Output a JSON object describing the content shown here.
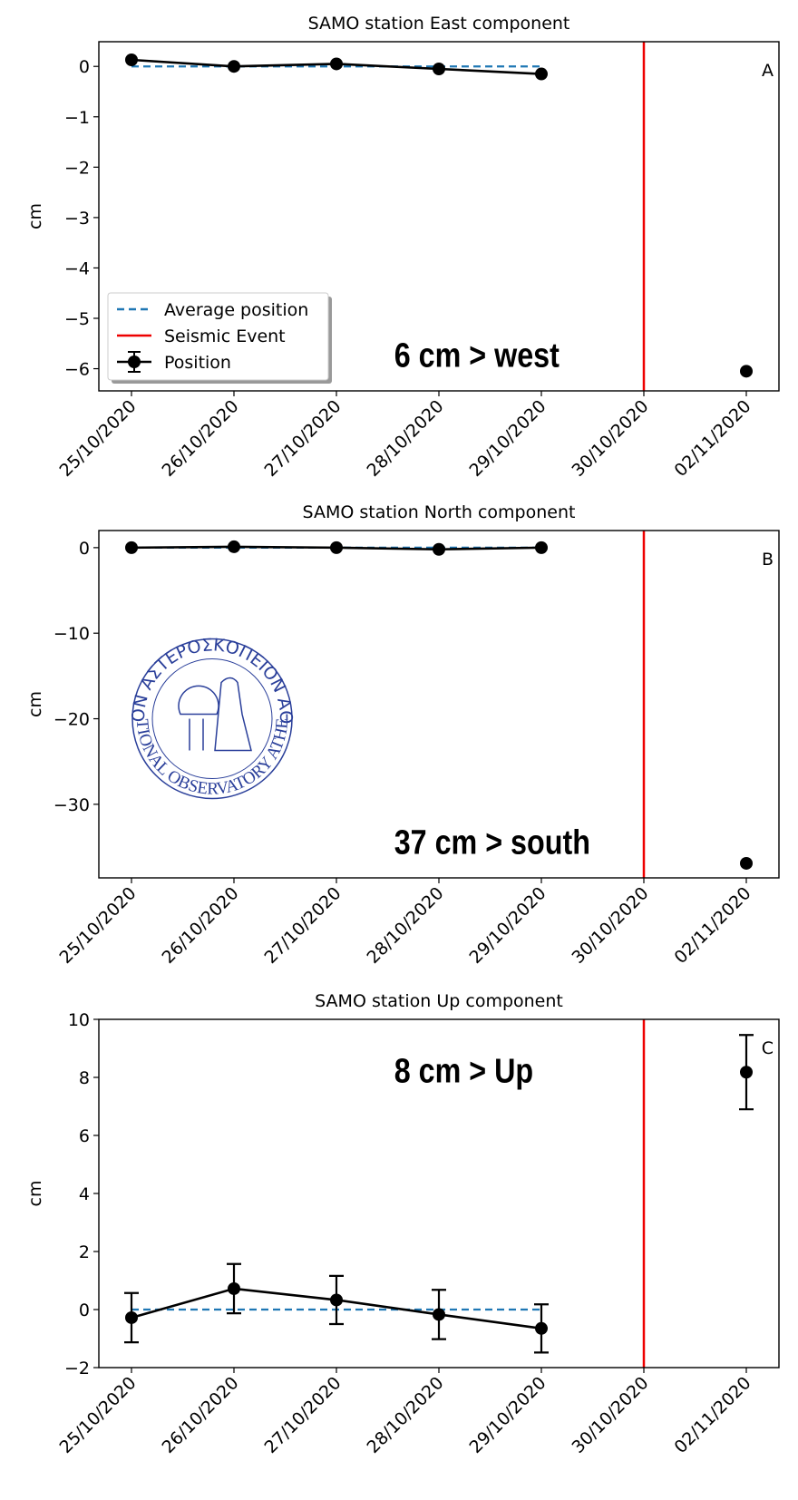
{
  "chart_data": [
    {
      "type": "line",
      "title": "SAMO station East component",
      "ylabel": "cm",
      "panel_label": "A",
      "annotation": "6 cm > west",
      "categories": [
        "25/10/2020",
        "26/10/2020",
        "27/10/2020",
        "28/10/2020",
        "29/10/2020",
        "30/10/2020",
        "02/11/2020"
      ],
      "series": [
        {
          "name": "Average position",
          "color": "#1f77b4",
          "dashed": true,
          "values": [
            0,
            0,
            0,
            0,
            0,
            null,
            null
          ]
        },
        {
          "name": "Position",
          "color": "#000000",
          "markers": true,
          "values": [
            0.13,
            0.0,
            0.05,
            -0.05,
            -0.15,
            null,
            -6.05
          ]
        }
      ],
      "event": {
        "name": "Seismic Event",
        "color": "#ee0000",
        "category_index": 5
      },
      "ylim": [
        -6.44,
        0.49
      ],
      "yticks": [
        {
          "value": -6,
          "label": "−6"
        },
        {
          "value": -5,
          "label": "−5"
        },
        {
          "value": -4,
          "label": "−4"
        },
        {
          "value": -3,
          "label": "−3"
        },
        {
          "value": -2,
          "label": "−2"
        },
        {
          "value": -1,
          "label": "−1"
        },
        0
      ],
      "legend": "lower left"
    },
    {
      "type": "line",
      "title": "SAMO station North component",
      "ylabel": "cm",
      "panel_label": "B",
      "annotation": "37 cm > south",
      "categories": [
        "25/10/2020",
        "26/10/2020",
        "27/10/2020",
        "28/10/2020",
        "29/10/2020",
        "30/10/2020",
        "02/11/2020"
      ],
      "series": [
        {
          "color": "#1f77b4",
          "dashed": true,
          "values": [
            0,
            0,
            0,
            0,
            0,
            null,
            null
          ]
        },
        {
          "color": "#000000",
          "markers": true,
          "values": [
            0,
            0.1,
            0,
            -0.2,
            0,
            null,
            -36.9
          ]
        }
      ],
      "event": {
        "color": "#ee0000",
        "category_index": 5
      },
      "ylim": [
        -38.6,
        2.0
      ],
      "yticks": [
        {
          "value": -30,
          "label": "−30"
        },
        {
          "value": -20,
          "label": "−20"
        },
        {
          "value": -10,
          "label": "−10"
        },
        0
      ],
      "logo": {
        "top_text": "ΕΘΝΙΚΟΝ ΑΣΤΕΡΟΣΚΟΠΕΙΟΝ ΑΘΗΝΩΝ",
        "bottom_text": "NATIONAL OBSERVATORY ATHENS"
      }
    },
    {
      "type": "line",
      "title": "SAMO station Up component",
      "ylabel": "cm",
      "panel_label": "C",
      "annotation": "8 cm > Up",
      "categories": [
        "25/10/2020",
        "26/10/2020",
        "27/10/2020",
        "28/10/2020",
        "29/10/2020",
        "30/10/2020",
        "02/11/2020"
      ],
      "series": [
        {
          "color": "#1f77b4",
          "dashed": true,
          "values": [
            0,
            0,
            0,
            0,
            0,
            null,
            null
          ]
        },
        {
          "color": "#000000",
          "markers": true,
          "values": [
            -0.28,
            0.72,
            0.33,
            -0.17,
            -0.65,
            null,
            8.18
          ],
          "errors": [
            0.85,
            0.85,
            0.83,
            0.85,
            0.83,
            null,
            1.28
          ]
        }
      ],
      "event": {
        "color": "#ee0000",
        "category_index": 5
      },
      "ylim": [
        -2,
        10
      ],
      "yticks": [
        {
          "value": -2,
          "label": "−2"
        },
        0,
        2,
        4,
        6,
        8,
        10
      ]
    }
  ]
}
